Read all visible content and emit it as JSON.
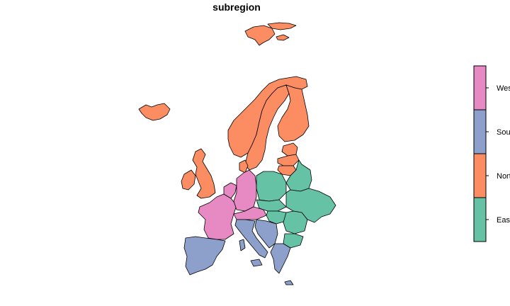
{
  "title": "subregion",
  "colors": {
    "eastern": "#66c2a5",
    "northern": "#fc8d62",
    "southern": "#8da0cb",
    "western": "#e78ac3",
    "outline": "#000000",
    "background": "#ffffff"
  },
  "legend": {
    "entries": [
      {
        "label": "Western Europe",
        "color": "#e78ac3"
      },
      {
        "label": "Southern Europe",
        "color": "#8da0cb"
      },
      {
        "label": "Northern Europe",
        "color": "#fc8d62"
      },
      {
        "label": "Eastern Europe",
        "color": "#66c2a5"
      }
    ],
    "placement": "right"
  }
}
